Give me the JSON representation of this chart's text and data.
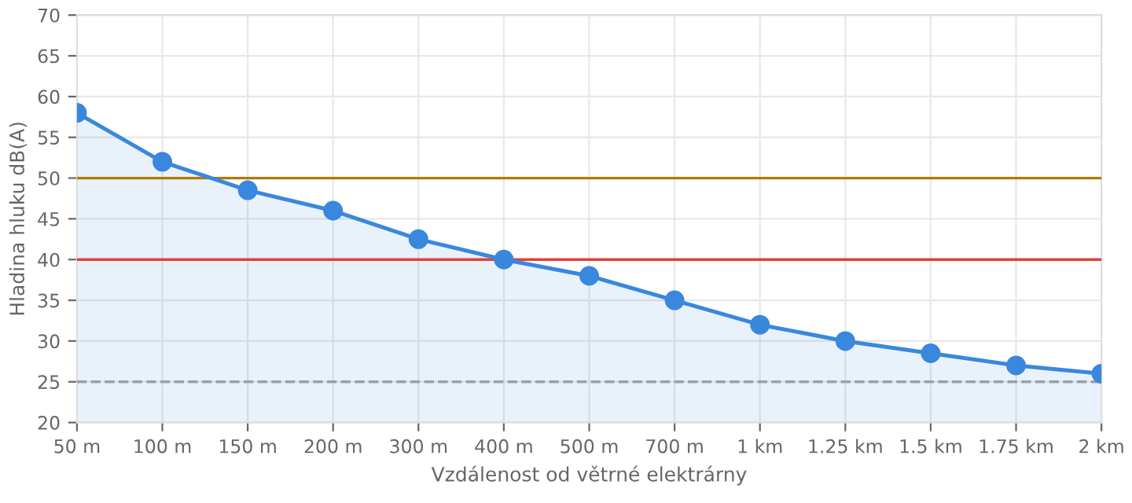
{
  "chart_data": {
    "type": "area",
    "xlabel": "Vzdálenost od větrné elektrárny",
    "ylabel": "Hladina hluku dB(A)",
    "categories": [
      "50 m",
      "100 m",
      "150 m",
      "200 m",
      "300 m",
      "400 m",
      "500 m",
      "700 m",
      "1 km",
      "1.25 km",
      "1.5 km",
      "1.75 km",
      "2 km"
    ],
    "series": [
      {
        "color": "#3a87de",
        "values": [
          58,
          52,
          48.5,
          46,
          42.5,
          40,
          38,
          35,
          32,
          30,
          28.5,
          27,
          26
        ]
      }
    ],
    "ylim": [
      20,
      70
    ],
    "yticks": [
      20,
      25,
      30,
      35,
      40,
      45,
      50,
      55,
      60,
      65,
      70
    ],
    "ref_lines": [
      {
        "axis": "y",
        "value": 50,
        "color": "#b07a00",
        "line_style": "solid"
      },
      {
        "axis": "y",
        "value": 40,
        "color": "#e0413a",
        "line_style": "solid"
      },
      {
        "axis": "y",
        "value": 25,
        "color": "#9aa0a8",
        "line_style": "dashed"
      }
    ],
    "grid": true,
    "marker": "circle",
    "line_style": "solid"
  }
}
